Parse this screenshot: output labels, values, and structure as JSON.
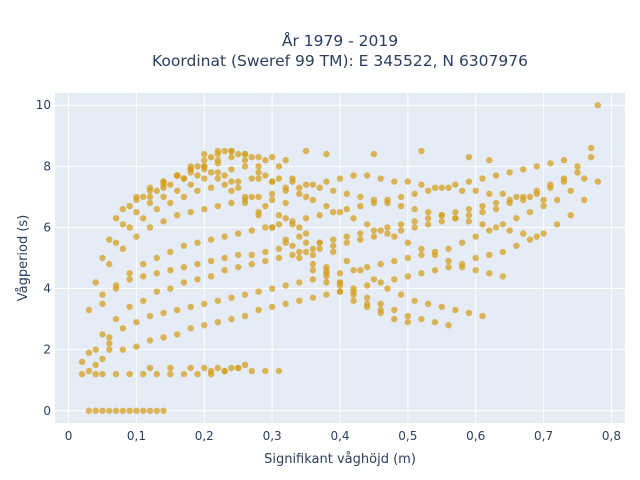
{
  "chart_data": {
    "type": "scatter",
    "title_line1": "År 1979 - 2019",
    "title_line2": "Koordinat (Sweref 99 TM): E 345522, N 6307976",
    "xlabel": "Signifikant våghöjd (m)",
    "ylabel": "Vågperiod (s)",
    "xlim": [
      -0.02,
      0.82
    ],
    "ylim": [
      -0.4,
      10.4
    ],
    "x_ticks": [
      0,
      0.1,
      0.2,
      0.3,
      0.4,
      0.5,
      0.6,
      0.7,
      0.8
    ],
    "x_tick_labels": [
      "0",
      "0,1",
      "0,2",
      "0,3",
      "0,4",
      "0,5",
      "0,6",
      "0,7",
      "0,8"
    ],
    "y_ticks": [
      0,
      2,
      4,
      6,
      8,
      10
    ],
    "y_tick_labels": [
      "0",
      "2",
      "4",
      "6",
      "8",
      "10"
    ],
    "grid": true,
    "marker_color": "#d4a020",
    "plot_background": "#e5ecf6",
    "points_x": [
      0.03,
      0.04,
      0.05,
      0.06,
      0.07,
      0.08,
      0.09,
      0.1,
      0.11,
      0.12,
      0.13,
      0.14,
      0.02,
      0.02,
      0.03,
      0.03,
      0.04,
      0.05,
      0.07,
      0.09,
      0.11,
      0.13,
      0.15,
      0.17,
      0.19,
      0.21,
      0.23,
      0.25,
      0.12,
      0.15,
      0.18,
      0.2,
      0.22,
      0.24,
      0.26,
      0.04,
      0.05,
      0.06,
      0.06,
      0.08,
      0.1,
      0.12,
      0.14,
      0.16,
      0.18,
      0.2,
      0.22,
      0.24,
      0.26,
      0.28,
      0.3,
      0.32,
      0.34,
      0.36,
      0.38,
      0.4,
      0.42,
      0.44,
      0.46,
      0.48,
      0.5,
      0.52,
      0.54,
      0.56,
      0.58,
      0.6,
      0.62,
      0.64,
      0.66,
      0.68,
      0.7,
      0.72,
      0.74,
      0.76,
      0.78,
      0.05,
      0.07,
      0.09,
      0.11,
      0.13,
      0.15,
      0.17,
      0.19,
      0.21,
      0.23,
      0.25,
      0.27,
      0.29,
      0.31,
      0.33,
      0.35,
      0.37,
      0.39,
      0.41,
      0.43,
      0.45,
      0.47,
      0.49,
      0.51,
      0.53,
      0.55,
      0.57,
      0.59,
      0.61,
      0.63,
      0.65,
      0.67,
      0.69,
      0.71,
      0.73,
      0.75,
      0.77,
      0.05,
      0.07,
      0.09,
      0.11,
      0.13,
      0.15,
      0.17,
      0.19,
      0.21,
      0.23,
      0.25,
      0.27,
      0.29,
      0.31,
      0.33,
      0.35,
      0.37,
      0.39,
      0.41,
      0.43,
      0.45,
      0.47,
      0.49,
      0.51,
      0.53,
      0.55,
      0.57,
      0.59,
      0.61,
      0.63,
      0.65,
      0.67,
      0.69,
      0.71,
      0.73,
      0.04,
      0.06,
      0.08,
      0.1,
      0.12,
      0.14,
      0.16,
      0.18,
      0.2,
      0.22,
      0.24,
      0.26,
      0.28,
      0.3,
      0.32,
      0.34,
      0.36,
      0.38,
      0.4,
      0.42,
      0.44,
      0.46,
      0.48,
      0.5,
      0.52,
      0.54,
      0.56,
      0.58,
      0.6,
      0.62,
      0.64,
      0.66,
      0.68,
      0.7,
      0.05,
      0.07,
      0.09,
      0.11,
      0.13,
      0.15,
      0.17,
      0.19,
      0.21,
      0.23,
      0.25,
      0.27,
      0.29,
      0.31,
      0.33,
      0.35,
      0.37,
      0.39,
      0.41,
      0.43,
      0.45,
      0.47,
      0.49,
      0.51,
      0.53,
      0.55,
      0.57,
      0.59,
      0.61,
      0.63,
      0.65,
      0.67,
      0.69,
      0.06,
      0.08,
      0.1,
      0.12,
      0.14,
      0.16,
      0.18,
      0.2,
      0.22,
      0.24,
      0.26,
      0.28,
      0.3,
      0.32,
      0.34,
      0.36,
      0.38,
      0.4,
      0.42,
      0.44,
      0.46,
      0.48,
      0.5,
      0.52,
      0.54,
      0.56,
      0.58,
      0.6,
      0.62,
      0.64,
      0.07,
      0.09,
      0.11,
      0.13,
      0.15,
      0.17,
      0.19,
      0.21,
      0.23,
      0.25,
      0.27,
      0.29,
      0.31,
      0.33,
      0.35,
      0.37,
      0.39,
      0.41,
      0.43,
      0.45,
      0.47,
      0.49,
      0.51,
      0.53,
      0.55,
      0.57,
      0.59,
      0.61,
      0.08,
      0.1,
      0.12,
      0.14,
      0.16,
      0.18,
      0.2,
      0.22,
      0.24,
      0.26,
      0.28,
      0.3,
      0.32,
      0.34,
      0.36,
      0.38,
      0.4,
      0.42,
      0.44,
      0.46,
      0.48,
      0.5,
      0.52,
      0.54,
      0.56,
      0.1,
      0.12,
      0.14,
      0.16,
      0.18,
      0.2,
      0.22,
      0.24,
      0.26,
      0.28,
      0.3,
      0.32,
      0.34,
      0.36,
      0.38,
      0.4,
      0.42,
      0.44,
      0.46,
      0.48,
      0.5,
      0.12,
      0.14,
      0.16,
      0.18,
      0.2,
      0.22,
      0.24,
      0.26,
      0.28,
      0.3,
      0.32,
      0.34,
      0.36,
      0.38,
      0.4,
      0.42,
      0.44,
      0.46,
      0.14,
      0.16,
      0.18,
      0.2,
      0.22,
      0.24,
      0.26,
      0.28,
      0.3,
      0.32,
      0.34,
      0.36,
      0.38,
      0.4,
      0.17,
      0.19,
      0.21,
      0.23,
      0.25,
      0.27,
      0.29,
      0.31,
      0.33,
      0.35,
      0.2,
      0.22,
      0.24,
      0.26,
      0.28,
      0.3,
      0.32,
      0.21,
      0.23,
      0.25,
      0.27,
      0.29,
      0.31,
      0.35,
      0.38,
      0.45,
      0.52,
      0.59,
      0.62,
      0.03,
      0.05,
      0.07,
      0.09,
      0.11,
      0.13,
      0.15,
      0.17,
      0.19,
      0.21,
      0.23,
      0.25,
      0.27,
      0.29,
      0.31,
      0.33,
      0.35,
      0.37,
      0.39,
      0.41,
      0.43,
      0.45,
      0.47,
      0.49,
      0.51,
      0.53,
      0.55,
      0.57,
      0.59,
      0.61,
      0.63,
      0.65,
      0.67,
      0.69,
      0.71,
      0.73,
      0.75,
      0.77,
      0.04,
      0.06,
      0.08,
      0.1,
      0.12,
      0.14,
      0.16,
      0.18,
      0.2,
      0.22,
      0.24,
      0.26,
      0.28,
      0.3,
      0.32,
      0.34,
      0.36,
      0.38,
      0.4,
      0.42,
      0.44,
      0.46,
      0.48,
      0.5,
      0.52,
      0.54,
      0.56,
      0.58,
      0.6,
      0.62,
      0.64,
      0.66,
      0.68,
      0.7,
      0.72,
      0.74,
      0.76,
      0.78
    ],
    "points_y": [
      0.0,
      0.0,
      0.0,
      0.0,
      0.0,
      0.0,
      0.0,
      0.0,
      0.0,
      0.0,
      0.0,
      0.0,
      1.2,
      1.6,
      1.9,
      1.3,
      1.2,
      1.2,
      1.2,
      1.2,
      1.2,
      1.2,
      1.2,
      1.2,
      1.2,
      1.2,
      1.3,
      1.4,
      1.4,
      1.4,
      1.4,
      1.4,
      1.4,
      1.4,
      1.5,
      1.5,
      1.7,
      2.0,
      2.2,
      2.0,
      2.1,
      2.3,
      2.4,
      2.5,
      2.7,
      2.8,
      2.9,
      3.0,
      3.1,
      3.3,
      3.4,
      3.5,
      3.6,
      3.7,
      3.8,
      3.9,
      4.0,
      4.1,
      4.2,
      4.3,
      4.4,
      4.5,
      4.6,
      4.7,
      4.8,
      5.0,
      5.1,
      5.2,
      5.4,
      5.6,
      5.8,
      6.1,
      6.4,
      6.9,
      7.5,
      2.5,
      3.0,
      3.4,
      3.6,
      3.9,
      4.0,
      4.2,
      4.3,
      4.4,
      4.6,
      4.7,
      4.8,
      4.9,
      5.0,
      5.1,
      5.2,
      5.3,
      5.4,
      5.5,
      5.6,
      5.7,
      5.8,
      5.9,
      6.0,
      6.1,
      6.2,
      6.3,
      6.4,
      6.5,
      6.6,
      6.8,
      6.9,
      7.1,
      7.3,
      7.5,
      7.8,
      8.3,
      3.5,
      4.0,
      4.5,
      4.8,
      5.0,
      5.2,
      5.4,
      5.5,
      5.6,
      5.7,
      5.8,
      5.9,
      6.0,
      6.1,
      6.2,
      6.3,
      6.4,
      6.5,
      6.6,
      6.7,
      6.8,
      6.9,
      7.0,
      7.1,
      7.2,
      7.3,
      7.4,
      7.5,
      7.6,
      7.7,
      7.8,
      7.9,
      8.0,
      8.1,
      8.2,
      4.2,
      4.8,
      5.3,
      5.7,
      6.0,
      6.2,
      6.4,
      6.5,
      6.6,
      6.7,
      6.8,
      6.9,
      7.0,
      7.1,
      7.2,
      7.3,
      7.4,
      7.5,
      7.6,
      7.7,
      7.7,
      7.6,
      7.5,
      7.5,
      7.4,
      7.3,
      7.3,
      7.2,
      7.2,
      7.1,
      7.1,
      7.0,
      7.0,
      6.9,
      5.0,
      5.5,
      6.0,
      6.3,
      6.6,
      6.8,
      7.0,
      7.2,
      7.3,
      7.4,
      7.5,
      7.6,
      7.7,
      7.6,
      7.5,
      7.4,
      7.3,
      7.2,
      7.1,
      7.0,
      6.9,
      6.8,
      6.7,
      6.6,
      6.5,
      6.4,
      6.3,
      6.2,
      6.1,
      6.0,
      5.9,
      5.8,
      5.7,
      5.6,
      6.1,
      6.5,
      6.8,
      7.0,
      7.2,
      7.4,
      7.6,
      7.8,
      7.9,
      8.0,
      7.8,
      7.5,
      7.3,
      7.1,
      6.9,
      6.7,
      6.5,
      6.3,
      6.1,
      5.9,
      5.7,
      5.5,
      5.3,
      5.1,
      4.9,
      4.7,
      4.6,
      4.5,
      4.4,
      6.3,
      6.7,
      7.0,
      7.2,
      7.4,
      7.6,
      7.7,
      7.8,
      7.7,
      7.3,
      7.0,
      6.7,
      6.4,
      6.1,
      5.8,
      5.5,
      5.2,
      4.9,
      4.6,
      4.3,
      4.0,
      3.8,
      3.6,
      3.5,
      3.4,
      3.3,
      3.2,
      3.1,
      6.6,
      7.0,
      7.3,
      7.5,
      7.7,
      7.8,
      7.9,
      7.6,
      7.2,
      6.8,
      6.4,
      6.0,
      5.6,
      5.2,
      4.8,
      4.5,
      4.2,
      3.9,
      3.7,
      3.5,
      3.3,
      3.1,
      3.0,
      2.9,
      2.8,
      6.9,
      7.2,
      7.5,
      7.7,
      7.9,
      8.0,
      8.1,
      7.5,
      7.0,
      6.5,
      6.0,
      5.5,
      5.0,
      4.6,
      4.2,
      3.9,
      3.6,
      3.4,
      3.2,
      3.0,
      2.9,
      7.0,
      7.4,
      7.7,
      7.9,
      8.0,
      8.2,
      8.3,
      8.2,
      7.6,
      6.9,
      6.3,
      5.7,
      5.1,
      4.6,
      4.2,
      3.8,
      3.5,
      3.3,
      7.3,
      7.7,
      8.0,
      8.2,
      8.4,
      8.5,
      8.4,
      8.0,
      7.5,
      6.8,
      6.0,
      5.3,
      4.7,
      4.1,
      7.6,
      8.0,
      8.3,
      8.5,
      8.4,
      8.3,
      8.2,
      8.0,
      7.6,
      7.0,
      8.4,
      8.5,
      8.5,
      8.4,
      8.3,
      8.3,
      8.2,
      1.3,
      1.3,
      1.4,
      1.3,
      1.3,
      1.3,
      8.5,
      8.4,
      8.4,
      8.5,
      8.3,
      8.2,
      3.3,
      3.8,
      4.1,
      4.3,
      4.4,
      4.5,
      4.6,
      4.7,
      4.8,
      4.9,
      5.0,
      5.1,
      5.1,
      5.2,
      5.3,
      5.4,
      5.5,
      5.5,
      5.6,
      5.7,
      5.8,
      5.9,
      6.0,
      6.1,
      6.2,
      6.3,
      6.4,
      6.5,
      6.6,
      6.7,
      6.8,
      6.9,
      7.0,
      7.2,
      7.4,
      7.6,
      8.0,
      8.6,
      2.0,
      2.4,
      2.7,
      2.9,
      3.1,
      3.2,
      3.3,
      3.4,
      3.5,
      3.6,
      3.7,
      3.8,
      3.9,
      4.0,
      4.1,
      4.2,
      4.3,
      4.4,
      4.5,
      4.6,
      4.7,
      4.8,
      4.9,
      5.0,
      5.1,
      5.2,
      5.3,
      5.5,
      5.7,
      5.9,
      6.1,
      6.3,
      6.5,
      6.7,
      6.9,
      7.2,
      7.6,
      10.0
    ]
  }
}
